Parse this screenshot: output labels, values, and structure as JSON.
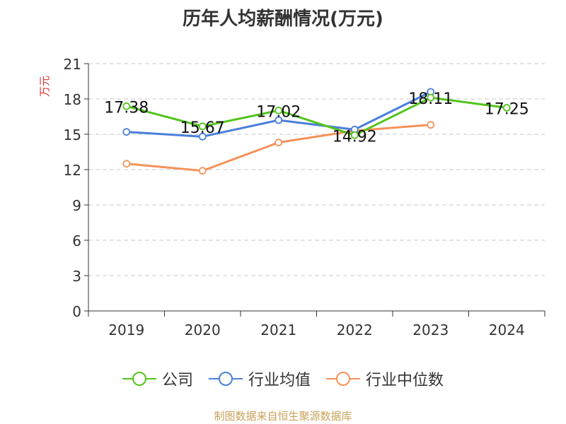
{
  "title": "历年人均薪酬情况(万元)",
  "source": "制图数据来自恒生聚源数据库",
  "chart_data": {
    "type": "line",
    "title": "历年人均薪酬情况(万元)",
    "ylabel": "万元",
    "ylim": [
      0,
      21
    ],
    "yticks": [
      0,
      3,
      6,
      9,
      12,
      15,
      18,
      21
    ],
    "categories": [
      "2019",
      "2020",
      "2021",
      "2022",
      "2023",
      "2024"
    ],
    "grid": true,
    "legend_position": "bottom",
    "series": [
      {
        "name": "公司",
        "color": "#52c41a",
        "values": [
          17.38,
          15.67,
          17.02,
          14.92,
          18.11,
          17.25
        ],
        "labels": [
          "17.38",
          "15.67",
          "17.02",
          "14.92",
          "18.11",
          "17.25"
        ]
      },
      {
        "name": "行业均值",
        "color": "#4a7fd9",
        "values": [
          15.2,
          14.8,
          16.2,
          15.4,
          18.6,
          null
        ]
      },
      {
        "name": "行业中位数",
        "color": "#f5925a",
        "values": [
          12.5,
          11.9,
          14.3,
          15.3,
          15.8,
          null
        ]
      }
    ]
  }
}
